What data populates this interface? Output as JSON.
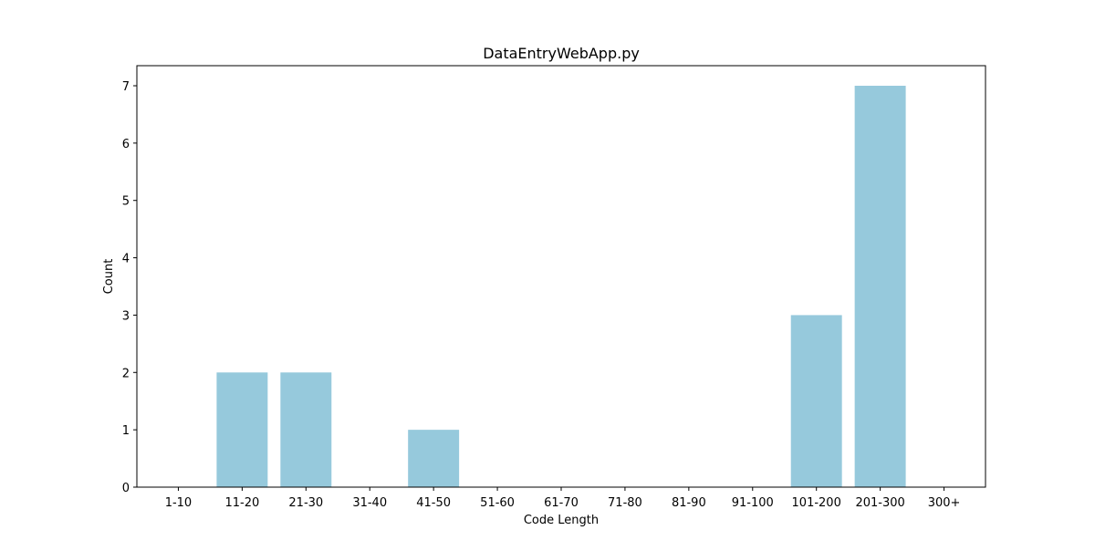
{
  "chart_data": {
    "type": "bar",
    "title": "DataEntryWebApp.py",
    "xlabel": "Code Length",
    "ylabel": "Count",
    "categories": [
      "1-10",
      "11-20",
      "21-30",
      "31-40",
      "41-50",
      "51-60",
      "61-70",
      "71-80",
      "81-90",
      "91-100",
      "101-200",
      "201-300",
      "300+"
    ],
    "values": [
      0,
      2,
      2,
      0,
      1,
      0,
      0,
      0,
      0,
      0,
      3,
      7,
      0
    ],
    "ylim": [
      0,
      7.35
    ],
    "yticks": [
      0,
      1,
      2,
      3,
      4,
      5,
      6,
      7
    ],
    "grid": false,
    "legend": "none",
    "bar_color": "#96c9dc"
  }
}
